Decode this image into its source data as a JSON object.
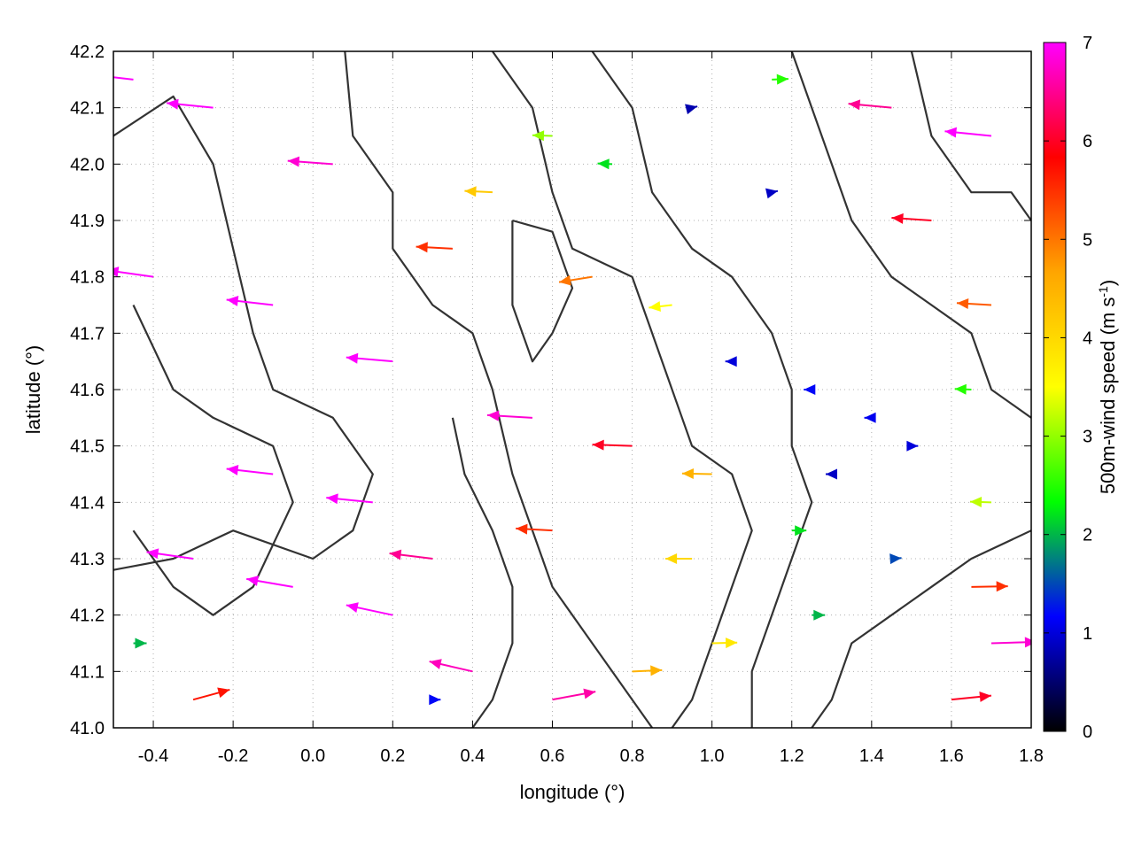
{
  "chart_data": {
    "type": "vector-field",
    "xlabel": "longitude (°)",
    "ylabel": "latitude (°)",
    "colorbar_label": "500m-wind speed (m s-1)",
    "colorbar_label_main": "500m-wind speed (m s",
    "colorbar_label_sup": "-1",
    "colorbar_label_end": ")",
    "xlim": [
      -0.5,
      1.8
    ],
    "ylim": [
      41.0,
      42.2
    ],
    "x_ticks": [
      "-0.4",
      "-0.2",
      "0.0",
      "0.2",
      "0.4",
      "0.6",
      "0.8",
      "1.0",
      "1.2",
      "1.4",
      "1.6",
      "1.8"
    ],
    "x_tick_values": [
      -0.4,
      -0.2,
      0.0,
      0.2,
      0.4,
      0.6,
      0.8,
      1.0,
      1.2,
      1.4,
      1.6,
      1.8
    ],
    "y_ticks": [
      "41.0",
      "41.1",
      "41.2",
      "41.3",
      "41.4",
      "41.5",
      "41.6",
      "41.7",
      "41.8",
      "41.9",
      "42.0",
      "42.1",
      "42.2"
    ],
    "y_tick_values": [
      41.0,
      41.1,
      41.2,
      41.3,
      41.4,
      41.5,
      41.6,
      41.7,
      41.8,
      41.9,
      42.0,
      42.1,
      42.2
    ],
    "colorbar_ticks": [
      "0",
      "1",
      "2",
      "3",
      "4",
      "5",
      "6",
      "7"
    ],
    "colorbar_tick_values": [
      0,
      1,
      2,
      3,
      4,
      5,
      6,
      7
    ],
    "speed_range": [
      0,
      7
    ],
    "colormap": [
      "#000000",
      "#0000ff",
      "#00ff00",
      "#ffff00",
      "#ffa500",
      "#ff0000",
      "#ff00ff"
    ],
    "contour_color": "#333333",
    "grid": "dotted",
    "vectors": [
      {
        "lon": -0.45,
        "lat": 42.15,
        "u": -7.0,
        "v": 0.8,
        "speed": 7.0
      },
      {
        "lon": -0.25,
        "lat": 42.1,
        "u": -7.0,
        "v": 0.7,
        "speed": 7.0
      },
      {
        "lon": 0.05,
        "lat": 42.0,
        "u": -6.8,
        "v": 0.5,
        "speed": 6.8
      },
      {
        "lon": -0.4,
        "lat": 41.8,
        "u": -7.0,
        "v": 1.0,
        "speed": 7.0
      },
      {
        "lon": -0.1,
        "lat": 41.75,
        "u": -7.0,
        "v": 0.8,
        "speed": 7.0
      },
      {
        "lon": 0.2,
        "lat": 41.65,
        "u": -7.0,
        "v": 0.6,
        "speed": 7.0
      },
      {
        "lon": 0.35,
        "lat": 41.85,
        "u": -5.5,
        "v": 0.3,
        "speed": 5.5
      },
      {
        "lon": 0.45,
        "lat": 41.95,
        "u": -4.2,
        "v": 0.2,
        "speed": 4.2
      },
      {
        "lon": 0.6,
        "lat": 42.05,
        "u": -3.0,
        "v": 0.1,
        "speed": 3.0
      },
      {
        "lon": 0.75,
        "lat": 42.0,
        "u": -2.2,
        "v": 0.1,
        "speed": 2.2
      },
      {
        "lon": 0.95,
        "lat": 42.1,
        "u": 0.8,
        "v": 0.2,
        "speed": 0.8
      },
      {
        "lon": 1.15,
        "lat": 42.15,
        "u": 2.5,
        "v": 0.1,
        "speed": 2.5
      },
      {
        "lon": 1.45,
        "lat": 42.1,
        "u": -6.5,
        "v": 0.6,
        "speed": 6.5
      },
      {
        "lon": 1.7,
        "lat": 42.05,
        "u": -7.0,
        "v": 0.7,
        "speed": 7.0
      },
      {
        "lon": 1.55,
        "lat": 41.9,
        "u": -6.0,
        "v": 0.4,
        "speed": 6.0
      },
      {
        "lon": 0.7,
        "lat": 41.8,
        "u": -5.0,
        "v": -0.8,
        "speed": 5.0
      },
      {
        "lon": 0.9,
        "lat": 41.75,
        "u": -3.5,
        "v": -0.4,
        "speed": 3.5
      },
      {
        "lon": 1.05,
        "lat": 41.65,
        "u": -1.0,
        "v": 0.0,
        "speed": 1.0
      },
      {
        "lon": 1.25,
        "lat": 41.6,
        "u": -1.2,
        "v": 0.0,
        "speed": 1.2
      },
      {
        "lon": 1.4,
        "lat": 41.55,
        "u": -1.1,
        "v": 0.0,
        "speed": 1.1
      },
      {
        "lon": 1.3,
        "lat": 41.45,
        "u": -0.9,
        "v": 0.0,
        "speed": 0.9
      },
      {
        "lon": 1.5,
        "lat": 41.5,
        "u": 1.0,
        "v": 0.0,
        "speed": 1.0
      },
      {
        "lon": 1.65,
        "lat": 41.6,
        "u": -2.5,
        "v": 0.1,
        "speed": 2.5
      },
      {
        "lon": 1.7,
        "lat": 41.75,
        "u": -5.2,
        "v": 0.3,
        "speed": 5.2
      },
      {
        "lon": 1.7,
        "lat": 41.4,
        "u": -3.2,
        "v": 0.1,
        "speed": 3.2
      },
      {
        "lon": 0.55,
        "lat": 41.55,
        "u": -6.8,
        "v": 0.4,
        "speed": 6.8
      },
      {
        "lon": 0.8,
        "lat": 41.5,
        "u": -6.0,
        "v": 0.2,
        "speed": 6.0
      },
      {
        "lon": 1.0,
        "lat": 41.45,
        "u": -4.5,
        "v": 0.1,
        "speed": 4.5
      },
      {
        "lon": 0.6,
        "lat": 41.35,
        "u": -5.5,
        "v": 0.3,
        "speed": 5.5
      },
      {
        "lon": 0.95,
        "lat": 41.3,
        "u": -4.0,
        "v": 0.0,
        "speed": 4.0
      },
      {
        "lon": 1.2,
        "lat": 41.35,
        "u": 2.2,
        "v": 0.0,
        "speed": 2.2
      },
      {
        "lon": 1.45,
        "lat": 41.3,
        "u": 1.5,
        "v": 0.1,
        "speed": 1.5
      },
      {
        "lon": 1.65,
        "lat": 41.25,
        "u": 5.5,
        "v": 0.1,
        "speed": 5.5
      },
      {
        "lon": 1.7,
        "lat": 41.15,
        "u": 6.8,
        "v": 0.2,
        "speed": 6.8
      },
      {
        "lon": 1.6,
        "lat": 41.05,
        "u": 6.0,
        "v": 0.6,
        "speed": 6.0
      },
      {
        "lon": 1.25,
        "lat": 41.2,
        "u": 2.0,
        "v": 0.0,
        "speed": 2.0
      },
      {
        "lon": 1.0,
        "lat": 41.15,
        "u": 3.8,
        "v": 0.1,
        "speed": 3.8
      },
      {
        "lon": 0.8,
        "lat": 41.1,
        "u": 4.5,
        "v": 0.2,
        "speed": 4.5
      },
      {
        "lon": 0.6,
        "lat": 41.05,
        "u": 6.5,
        "v": 1.2,
        "speed": 6.6
      },
      {
        "lon": 0.4,
        "lat": 41.1,
        "u": -6.5,
        "v": 1.5,
        "speed": 6.7
      },
      {
        "lon": 0.2,
        "lat": 41.2,
        "u": -7.0,
        "v": 1.5,
        "speed": 7.0
      },
      {
        "lon": -0.05,
        "lat": 41.25,
        "u": -7.0,
        "v": 1.2,
        "speed": 7.0
      },
      {
        "lon": -0.3,
        "lat": 41.3,
        "u": -7.0,
        "v": 1.0,
        "speed": 7.0
      },
      {
        "lon": -0.45,
        "lat": 41.15,
        "u": 2.0,
        "v": 0.0,
        "speed": 2.0
      },
      {
        "lon": -0.3,
        "lat": 41.05,
        "u": 5.5,
        "v": 1.5,
        "speed": 5.7
      },
      {
        "lon": -0.1,
        "lat": 41.45,
        "u": -7.0,
        "v": 0.8,
        "speed": 7.0
      },
      {
        "lon": 0.15,
        "lat": 41.4,
        "u": -7.0,
        "v": 0.7,
        "speed": 7.0
      },
      {
        "lon": 0.3,
        "lat": 41.3,
        "u": -6.5,
        "v": 0.8,
        "speed": 6.5
      },
      {
        "lon": 0.3,
        "lat": 41.05,
        "u": 1.2,
        "v": 0.0,
        "speed": 1.2
      },
      {
        "lon": 1.15,
        "lat": 41.95,
        "u": 0.9,
        "v": 0.2,
        "speed": 0.9
      }
    ],
    "contours": [
      [
        [
          -0.5,
          42.05
        ],
        [
          -0.35,
          42.12
        ],
        [
          -0.25,
          42.0
        ],
        [
          -0.2,
          41.85
        ],
        [
          -0.15,
          41.7
        ],
        [
          -0.1,
          41.6
        ],
        [
          0.05,
          41.55
        ],
        [
          0.15,
          41.45
        ],
        [
          0.1,
          41.35
        ],
        [
          0.0,
          41.3
        ],
        [
          -0.2,
          41.35
        ],
        [
          -0.35,
          41.3
        ],
        [
          -0.5,
          41.28
        ]
      ],
      [
        [
          0.08,
          42.2
        ],
        [
          0.1,
          42.05
        ],
        [
          0.2,
          41.95
        ],
        [
          0.2,
          41.85
        ],
        [
          0.3,
          41.75
        ],
        [
          0.4,
          41.7
        ],
        [
          0.45,
          41.6
        ],
        [
          0.5,
          41.45
        ],
        [
          0.55,
          41.35
        ],
        [
          0.6,
          41.25
        ],
        [
          0.7,
          41.15
        ],
        [
          0.8,
          41.05
        ],
        [
          0.85,
          41.0
        ]
      ],
      [
        [
          0.45,
          42.2
        ],
        [
          0.55,
          42.1
        ],
        [
          0.6,
          41.95
        ],
        [
          0.65,
          41.85
        ],
        [
          0.8,
          41.8
        ],
        [
          0.85,
          41.7
        ],
        [
          0.9,
          41.6
        ],
        [
          0.95,
          41.5
        ],
        [
          1.05,
          41.45
        ],
        [
          1.1,
          41.35
        ],
        [
          1.05,
          41.25
        ],
        [
          1.0,
          41.15
        ],
        [
          0.95,
          41.05
        ],
        [
          0.9,
          41.0
        ]
      ],
      [
        [
          0.7,
          42.2
        ],
        [
          0.8,
          42.1
        ],
        [
          0.85,
          41.95
        ],
        [
          0.95,
          41.85
        ],
        [
          1.05,
          41.8
        ],
        [
          1.15,
          41.7
        ],
        [
          1.2,
          41.6
        ],
        [
          1.2,
          41.5
        ],
        [
          1.25,
          41.4
        ],
        [
          1.2,
          41.3
        ],
        [
          1.15,
          41.2
        ],
        [
          1.1,
          41.1
        ],
        [
          1.1,
          41.0
        ]
      ],
      [
        [
          1.2,
          42.2
        ],
        [
          1.3,
          42.0
        ],
        [
          1.35,
          41.9
        ],
        [
          1.45,
          41.8
        ],
        [
          1.55,
          41.75
        ],
        [
          1.65,
          41.7
        ],
        [
          1.7,
          41.6
        ],
        [
          1.8,
          41.55
        ]
      ],
      [
        [
          1.8,
          41.35
        ],
        [
          1.65,
          41.3
        ],
        [
          1.55,
          41.25
        ],
        [
          1.45,
          41.2
        ],
        [
          1.35,
          41.15
        ],
        [
          1.3,
          41.05
        ],
        [
          1.25,
          41.0
        ]
      ],
      [
        [
          -0.45,
          41.75
        ],
        [
          -0.35,
          41.6
        ],
        [
          -0.25,
          41.55
        ],
        [
          -0.1,
          41.5
        ],
        [
          -0.05,
          41.4
        ],
        [
          -0.15,
          41.25
        ],
        [
          -0.25,
          41.2
        ],
        [
          -0.35,
          41.25
        ],
        [
          -0.45,
          41.35
        ]
      ],
      [
        [
          0.35,
          41.55
        ],
        [
          0.38,
          41.45
        ],
        [
          0.45,
          41.35
        ],
        [
          0.5,
          41.25
        ],
        [
          0.5,
          41.15
        ],
        [
          0.45,
          41.05
        ],
        [
          0.4,
          41.0
        ]
      ],
      [
        [
          1.5,
          42.2
        ],
        [
          1.55,
          42.05
        ],
        [
          1.65,
          41.95
        ],
        [
          1.75,
          41.95
        ],
        [
          1.8,
          41.9
        ]
      ],
      [
        [
          0.5,
          41.9
        ],
        [
          0.6,
          41.88
        ],
        [
          0.65,
          41.78
        ],
        [
          0.6,
          41.7
        ],
        [
          0.55,
          41.65
        ],
        [
          0.5,
          41.75
        ],
        [
          0.5,
          41.9
        ]
      ]
    ]
  }
}
